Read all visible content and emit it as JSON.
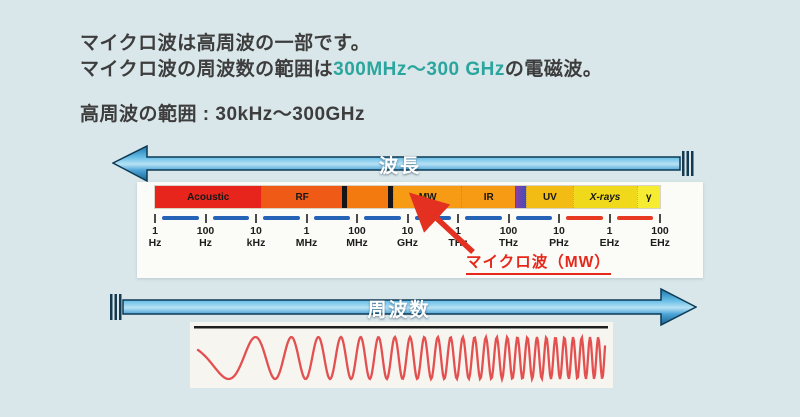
{
  "page": {
    "bg_color": "#d9e7ea"
  },
  "header": {
    "line1": "マイクロ波は高周波の一部です。",
    "line2": {
      "prefix": "マイクロ波の周波数の範囲は",
      "highlight": "300MHz〜300 GHz",
      "suffix": "の電磁波。"
    },
    "line3": "高周波の範囲 : 30kHz〜300GHz",
    "text_color": "#3d3d3d",
    "highlight_color": "#2ba59d"
  },
  "wavelength_arrow": {
    "label": "波長",
    "direction": "left"
  },
  "frequency_arrow": {
    "label": "周波数",
    "direction": "right"
  },
  "spectrum": {
    "bands": [
      {
        "label": "Acoustic",
        "color": "#e8251c",
        "width_pct": 21.4
      },
      {
        "label": "RF",
        "color": "#ef5b16",
        "width_pct": 16.0
      },
      {
        "label": "",
        "color": "#151515",
        "width_pct": 1.0,
        "divider": true
      },
      {
        "label": "",
        "color": "#f27a0f",
        "width_pct": 8.1
      },
      {
        "label": "",
        "color": "#151515",
        "width_pct": 1.0,
        "divider": true
      },
      {
        "label": "MW",
        "color": "#f79b15",
        "width_pct": 13.5
      },
      {
        "label": "IR",
        "color": "#f79b15",
        "width_pct": 10.7
      },
      {
        "label": "",
        "color": "#8c3fa8",
        "color2": "#3c50b8",
        "width_pct": 2.0
      },
      {
        "label": "UV",
        "color": "#f3bc14",
        "width_pct": 9.1
      },
      {
        "label": "X-rays",
        "color": "#f0d91b",
        "width_pct": 12.7,
        "italic": true
      },
      {
        "label": "γ",
        "color": "#f6ec32",
        "width_pct": 4.5
      }
    ],
    "ticks": [
      {
        "value": "1",
        "unit": "Hz"
      },
      {
        "value": "100",
        "unit": "Hz"
      },
      {
        "value": "10",
        "unit": "kHz"
      },
      {
        "value": "1",
        "unit": "MHz"
      },
      {
        "value": "100",
        "unit": "MHz"
      },
      {
        "value": "10",
        "unit": "GHz"
      },
      {
        "value": "1",
        "unit": "THz"
      },
      {
        "value": "100",
        "unit": "THz"
      },
      {
        "value": "10",
        "unit": "PHz"
      },
      {
        "value": "1",
        "unit": "EHz"
      },
      {
        "value": "100",
        "unit": "EHz"
      }
    ],
    "dash_colors": [
      "#2463b5",
      "#2463b5",
      "#2463b5",
      "#2463b5",
      "#2463b5",
      "#2463b5",
      "#2463b5",
      "#2463b5",
      "#e63920",
      "#e63920"
    ],
    "callout": {
      "label": "マイクロ波（MW）",
      "color": "#e6281a"
    }
  },
  "wave": {
    "color": "#e35050",
    "f0": 2.31,
    "f1": 51,
    "amplitude": 21,
    "mid": 36,
    "phase": -0.39
  }
}
